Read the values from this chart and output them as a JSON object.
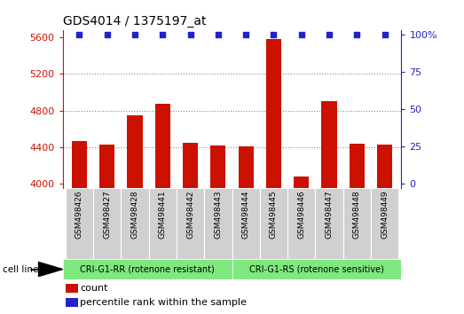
{
  "title": "GDS4014 / 1375197_at",
  "samples": [
    "GSM498426",
    "GSM498427",
    "GSM498428",
    "GSM498441",
    "GSM498442",
    "GSM498443",
    "GSM498444",
    "GSM498445",
    "GSM498446",
    "GSM498447",
    "GSM498448",
    "GSM498449"
  ],
  "counts": [
    4470,
    4430,
    4750,
    4870,
    4450,
    4420,
    4410,
    5580,
    4080,
    4900,
    4440,
    4430
  ],
  "bar_color": "#cc1100",
  "dot_color": "#2222cc",
  "ylim_left": [
    3950,
    5680
  ],
  "ylim_right": [
    -3,
    103
  ],
  "yticks_left": [
    4000,
    4400,
    4800,
    5200,
    5600
  ],
  "yticks_right": [
    0,
    25,
    50,
    75,
    100
  ],
  "ytick_right_labels": [
    "0",
    "25",
    "50",
    "75",
    "100%"
  ],
  "group1_label": "CRI-G1-RR (rotenone resistant)",
  "group2_label": "CRI-G1-RS (rotenone sensitive)",
  "group1_count": 6,
  "group2_count": 6,
  "cell_line_label": "cell line",
  "legend_count_label": "count",
  "legend_pct_label": "percentile rank within the sample",
  "group_bg_color": "#7fe87f",
  "title_fontsize": 10,
  "tick_label_fontsize": 8,
  "dotted_grid_color": "#888888",
  "left_color": "#cc1100",
  "right_color": "#2222cc"
}
